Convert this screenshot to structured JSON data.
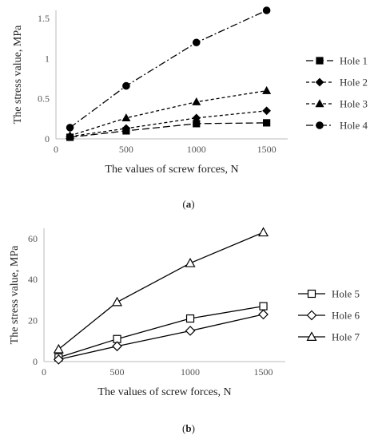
{
  "chart_data": [
    {
      "type": "line",
      "panel_label": "(a)",
      "panel_letter": "a",
      "xlabel": "The values of screw forces, N",
      "ylabel": "The stress value, MPa",
      "xlim": [
        0,
        1650
      ],
      "ylim": [
        0,
        1.6
      ],
      "xticks": [
        0,
        500,
        1000,
        1500
      ],
      "yticks": [
        0,
        0.5,
        1,
        1.5
      ],
      "ytick_labels": [
        "0",
        "0.5",
        "1",
        "1.5"
      ],
      "grid": false,
      "legend_position": "right",
      "x": [
        100,
        500,
        1000,
        1500
      ],
      "series": [
        {
          "name": "Hole 1",
          "marker": "square-filled",
          "dash": "long-dash",
          "values": [
            0.02,
            0.1,
            0.19,
            0.2
          ]
        },
        {
          "name": "Hole 2",
          "marker": "diamond-filled",
          "dash": "short-dash",
          "values": [
            0.03,
            0.13,
            0.26,
            0.35
          ]
        },
        {
          "name": "Hole 3",
          "marker": "triangle-filled",
          "dash": "short-dash",
          "values": [
            0.04,
            0.26,
            0.46,
            0.6
          ]
        },
        {
          "name": "Hole 4",
          "marker": "circle-filled",
          "dash": "dash-dot",
          "values": [
            0.14,
            0.66,
            1.2,
            1.6
          ]
        }
      ]
    },
    {
      "type": "line",
      "panel_label": "(b)",
      "panel_letter": "b",
      "xlabel": "The values of screw forces, N",
      "ylabel": "The stress value, MPa",
      "xlim": [
        0,
        1650
      ],
      "ylim": [
        0,
        65
      ],
      "xticks": [
        0,
        500,
        1000,
        1500
      ],
      "yticks": [
        0,
        20,
        40,
        60
      ],
      "ytick_labels": [
        "0",
        "20",
        "40",
        "60"
      ],
      "grid": false,
      "legend_position": "right",
      "x": [
        100,
        500,
        1000,
        1500
      ],
      "series": [
        {
          "name": "Hole 5",
          "marker": "square-open",
          "dash": "solid",
          "values": [
            2,
            11,
            21,
            27
          ]
        },
        {
          "name": "Hole 6",
          "marker": "diamond-open",
          "dash": "solid",
          "values": [
            1,
            7.5,
            15,
            23
          ]
        },
        {
          "name": "Hole 7",
          "marker": "triangle-open",
          "dash": "solid",
          "values": [
            6,
            29,
            48,
            63
          ]
        }
      ]
    }
  ]
}
